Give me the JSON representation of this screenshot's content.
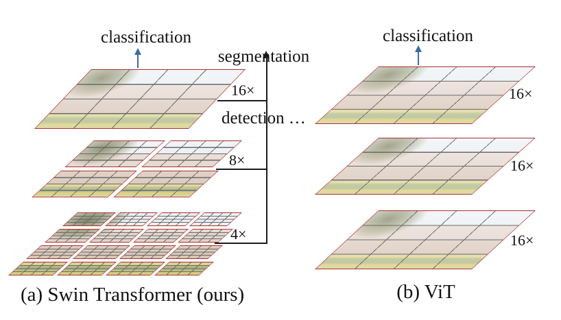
{
  "figure": {
    "left_panel": {
      "task_label": "classification",
      "caption": "(a) Swin Transformer (ours)",
      "stages": [
        {
          "scale_label": "16×",
          "windows": 1,
          "grid": "4×4"
        },
        {
          "scale_label": "8×",
          "windows": 4,
          "grid": "4×4"
        },
        {
          "scale_label": "4×",
          "windows": 16,
          "grid": "4×4"
        }
      ]
    },
    "center": {
      "task_labels": [
        "segmentation",
        "detection …"
      ]
    },
    "right_panel": {
      "task_label": "classification",
      "caption": "(b) ViT",
      "stages": [
        {
          "scale_label": "16×"
        },
        {
          "scale_label": "16×"
        },
        {
          "scale_label": "16×"
        }
      ]
    },
    "colors": {
      "map_border_red": "#a93232",
      "grid_line_gray": "#6a6a6a",
      "task_arrow_blue": "#3a6ca3",
      "output_arrow_black": "#1a1a1a"
    }
  }
}
